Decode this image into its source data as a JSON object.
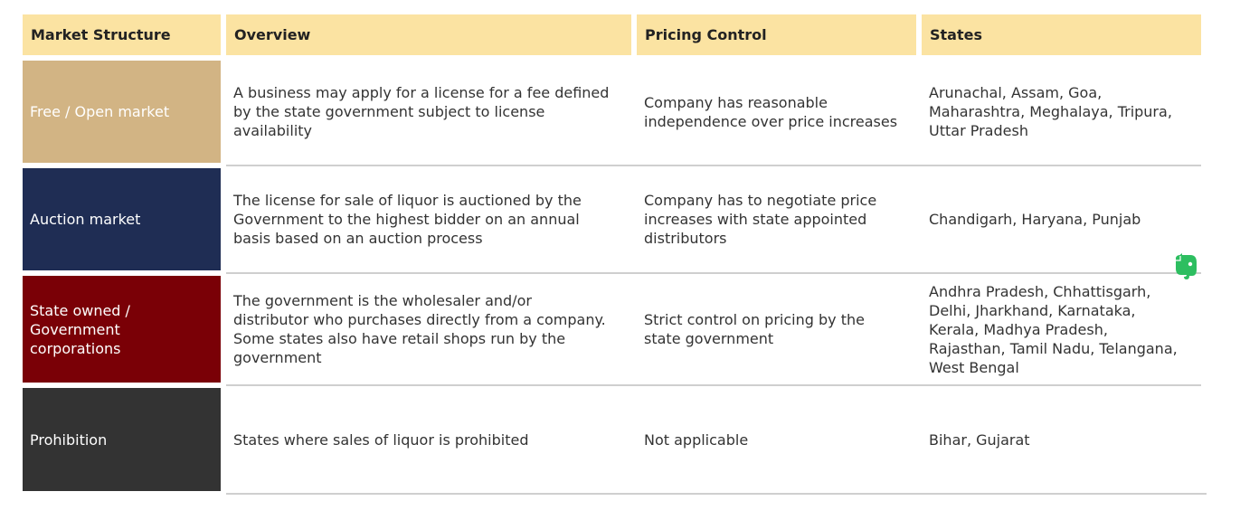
{
  "headers": [
    "Market Structure",
    "Overview",
    "Pricing Control",
    "States"
  ],
  "rows": [
    {
      "label": "Free / Open market",
      "overview": "A business may apply for a license for a fee defined\nby the state government subject to license\navailability",
      "pricing": "Company has reasonable\nindependence over price increases",
      "states": "Arunachal, Assam, Goa,\nMaharashtra, Meghalaya, Tripura,\nUttar Pradesh"
    },
    {
      "label": "Auction market",
      "overview": "The license for sale of liquor is auctioned by the\nGovernment to the highest bidder on an annual\nbasis based on an auction process",
      "pricing": "Company has to negotiate price\nincreases with state appointed\ndistributors",
      "states": "Chandigarh, Haryana, Punjab"
    },
    {
      "label": "State owned /\nGovernment\ncorporations",
      "overview": "The government is the wholesaler and/or\ndistributor who purchases directly from a company.\nSome states also have retail shops run by the\ngovernment",
      "pricing": "Strict control on pricing by the\nstate government",
      "states": "Andhra Pradesh, Chhattisgarh,\nDelhi, Jharkhand, Karnataka,\nKerala, Madhya Pradesh,\nRajasthan, Tamil Nadu, Telangana,\nWest Bengal"
    },
    {
      "label": "Prohibition",
      "overview": "States where sales of liquor is prohibited",
      "pricing": "Not applicable",
      "states": "Bihar, Gujarat"
    }
  ],
  "colors": {
    "header_bg": "#fbe3a2",
    "row_label_bg": [
      "#d2b484",
      "#1f2d54",
      "#7a0006",
      "#333333"
    ],
    "evernote_icon": "#2dbe60"
  },
  "icons": {
    "floating": "evernote-elephant-icon"
  }
}
